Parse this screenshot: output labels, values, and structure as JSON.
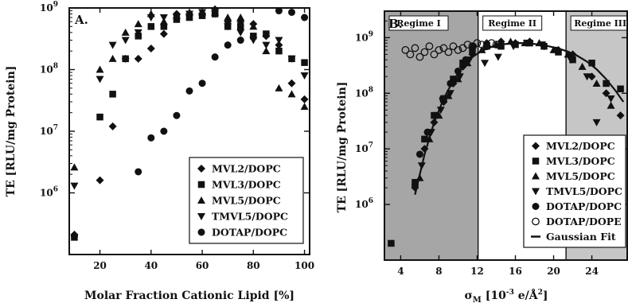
{
  "chart_data": [
    {
      "type": "scatter",
      "panel_label": "A.",
      "xlabel": "Molar Fraction Cationic Lipid [%]",
      "ylabel": "TE [RLU/mg Protein]",
      "xlim": [
        8,
        102
      ],
      "ylim": [
        100000,
        1000000000
      ],
      "yscale": "log",
      "xticks": [
        20,
        40,
        60,
        80,
        100
      ],
      "yticks": [
        {
          "v": 1000000,
          "base": "10",
          "exp": "6"
        },
        {
          "v": 10000000,
          "base": "10",
          "exp": "7"
        },
        {
          "v": 100000000,
          "base": "10",
          "exp": "8"
        },
        {
          "v": 1000000000,
          "base": "10",
          "exp": "9"
        }
      ],
      "legend_position": "bottom-right",
      "series": [
        {
          "name": "MVL2/DOPC",
          "marker": "diamond",
          "x": [
            10,
            20,
            25,
            30,
            35,
            40,
            45,
            50,
            55,
            60,
            65,
            70,
            75,
            80,
            85,
            90,
            95,
            100
          ],
          "y": [
            210000,
            1600000,
            12000000,
            150000000,
            150000000,
            220000000,
            380000000,
            800000000,
            800000000,
            800000000,
            950000000,
            600000000,
            600000000,
            550000000,
            350000000,
            250000000,
            60000000,
            33000000
          ]
        },
        {
          "name": "MVL3/DOPC",
          "marker": "square",
          "x": [
            10,
            20,
            25,
            30,
            35,
            40,
            45,
            50,
            55,
            60,
            65,
            70,
            75,
            80,
            85,
            90,
            95,
            100
          ],
          "y": [
            190000,
            17000000,
            40000000,
            150000000,
            350000000,
            500000000,
            500000000,
            650000000,
            700000000,
            750000000,
            800000000,
            500000000,
            500000000,
            350000000,
            380000000,
            200000000,
            150000000,
            130000000
          ]
        },
        {
          "name": "MVL5/DOPC",
          "marker": "triangle-up",
          "x": [
            10,
            20,
            25,
            30,
            35,
            40,
            45,
            50,
            55,
            60,
            65,
            70,
            75,
            80,
            85,
            90,
            95,
            100
          ],
          "y": [
            2600000,
            100000000,
            150000000,
            400000000,
            550000000,
            800000000,
            600000000,
            750000000,
            850000000,
            850000000,
            850000000,
            700000000,
            700000000,
            500000000,
            200000000,
            50000000,
            40000000,
            25000000
          ]
        },
        {
          "name": "TMVL5/DOPC",
          "marker": "triangle-down",
          "x": [
            10,
            20,
            25,
            30,
            35,
            40,
            45,
            50,
            55,
            60,
            65,
            70,
            75,
            80,
            85,
            90,
            95,
            100
          ],
          "y": [
            1300000,
            70000000,
            250000000,
            300000000,
            400000000,
            700000000,
            700000000,
            700000000,
            800000000,
            850000000,
            800000000,
            500000000,
            400000000,
            300000000,
            250000000,
            300000000,
            150000000,
            80000000
          ]
        },
        {
          "name": "DOTAP/DOPC",
          "marker": "circle",
          "x": [
            10,
            35,
            40,
            45,
            50,
            55,
            60,
            65,
            70,
            75,
            90,
            95,
            100
          ],
          "y": [
            200000,
            2200000,
            7800000,
            10000000,
            18000000,
            45000000,
            60000000,
            160000000,
            250000000,
            300000000,
            900000000,
            850000000,
            700000000
          ]
        }
      ]
    },
    {
      "type": "scatter",
      "panel_label": "B.",
      "xlabel_main": "σ",
      "xlabel_sub": "M",
      "xlabel_units": " [10",
      "xlabel_exp": "-3",
      "xlabel_tail": " e/Å",
      "xlabel_exp2": "2",
      "xlabel_end": "]",
      "ylabel": "TE [RLU/mg Protein]",
      "xlim": [
        2.3,
        27.7
      ],
      "ylim": [
        100000,
        3000000000
      ],
      "yscale": "log",
      "xticks": [
        4,
        8,
        12,
        16,
        20,
        24
      ],
      "yticks": [
        {
          "v": 1000000,
          "base": "10",
          "exp": "6"
        },
        {
          "v": 10000000,
          "base": "10",
          "exp": "7"
        },
        {
          "v": 100000000,
          "base": "10",
          "exp": "8"
        },
        {
          "v": 1000000000,
          "base": "10",
          "exp": "9"
        }
      ],
      "regimes": [
        {
          "label": "Regime I",
          "x0": 2.3,
          "x1": 12.1,
          "shade": "#a6a6a6"
        },
        {
          "label": "Regime II",
          "x0": 12.1,
          "x1": 21.3,
          "shade": "#ffffff"
        },
        {
          "label": "Regime III",
          "x0": 21.3,
          "x1": 27.7,
          "shade": "#c6c6c6"
        }
      ],
      "legend_position": "bottom-right",
      "series": [
        {
          "name": "MVL2/DOPC",
          "marker": "diamond",
          "x": [
            5.5,
            6.5,
            7.5,
            8.5,
            9.5,
            10.5,
            11.5,
            13,
            14.5,
            16,
            17.5,
            19,
            20.5,
            22,
            24,
            25.5,
            27
          ],
          "y": [
            2000000,
            10000000,
            30000000,
            70000000,
            150000000,
            300000000,
            500000000,
            800000000,
            850000000,
            800000000,
            850000000,
            700000000,
            600000000,
            500000000,
            200000000,
            100000000,
            40000000
          ]
        },
        {
          "name": "MVL3/DOPC",
          "marker": "square",
          "x": [
            3,
            5.5,
            6.5,
            7.5,
            8.5,
            9.5,
            10.5,
            11.5,
            13,
            14.5,
            16,
            17.5,
            19,
            20.5,
            22,
            24,
            25.5,
            27
          ],
          "y": [
            200000,
            2500000,
            15000000,
            40000000,
            80000000,
            180000000,
            350000000,
            600000000,
            700000000,
            700000000,
            750000000,
            800000000,
            700000000,
            550000000,
            400000000,
            350000000,
            150000000,
            120000000
          ]
        },
        {
          "name": "MVL5/DOPC",
          "marker": "triangle-up",
          "x": [
            6,
            7,
            8,
            9,
            10,
            11,
            12.5,
            14,
            15.5,
            17,
            18.5,
            20,
            21.5,
            23,
            24.5,
            26
          ],
          "y": [
            3000000,
            15000000,
            40000000,
            90000000,
            180000000,
            350000000,
            600000000,
            750000000,
            850000000,
            800000000,
            800000000,
            600000000,
            500000000,
            300000000,
            150000000,
            60000000
          ]
        },
        {
          "name": "TMVL5/DOPC",
          "marker": "triangle-down",
          "x": [
            6.2,
            7.2,
            8.2,
            9.2,
            10.2,
            11.2,
            12.8,
            14.2,
            15.8,
            17.2,
            18.8,
            20.2,
            21.8,
            23.5,
            24.5,
            26
          ],
          "y": [
            5000000,
            20000000,
            50000000,
            100000000,
            200000000,
            400000000,
            350000000,
            450000000,
            700000000,
            800000000,
            750000000,
            600000000,
            400000000,
            200000000,
            30000000,
            80000000
          ]
        },
        {
          "name": "DOTAP/DOPC",
          "marker": "circle",
          "x": [
            5.5,
            6,
            6.8,
            7.6,
            8.4,
            9.2,
            10,
            10.8,
            11.6
          ],
          "y": [
            2200000,
            8000000,
            20000000,
            40000000,
            80000000,
            150000000,
            250000000,
            400000000,
            700000000
          ]
        },
        {
          "name": "DOTAP/DOPE",
          "marker": "circle-open",
          "x": [
            4.5,
            5,
            5.5,
            6,
            6.5,
            7,
            7.5,
            8,
            8.5,
            9,
            9.5,
            10,
            10.5,
            11,
            11.5,
            12,
            12.5,
            13,
            13.5,
            14
          ],
          "y": [
            600000000,
            500000000,
            650000000,
            450000000,
            550000000,
            700000000,
            500000000,
            600000000,
            650000000,
            550000000,
            700000000,
            600000000,
            650000000,
            750000000,
            700000000,
            800000000,
            750000000,
            700000000,
            800000000,
            750000000
          ]
        },
        {
          "name": "Gaussian Fit",
          "marker": "line",
          "x": [
            5.5,
            6.5,
            7.5,
            8.5,
            9.5,
            10.5,
            11.5,
            12.5,
            13.5,
            14.5,
            15.5,
            16.5,
            17.5,
            18.5,
            19.5,
            20.5,
            21.5,
            22.5,
            23.5,
            24.5,
            25.5,
            26.5,
            27.3
          ],
          "y": [
            1500000,
            8000000,
            30000000,
            80000000,
            170000000,
            300000000,
            450000000,
            580000000,
            680000000,
            750000000,
            790000000,
            800000000,
            790000000,
            750000000,
            700000000,
            640000000,
            560000000,
            470000000,
            370000000,
            270000000,
            180000000,
            110000000,
            70000000
          ]
        }
      ]
    }
  ]
}
